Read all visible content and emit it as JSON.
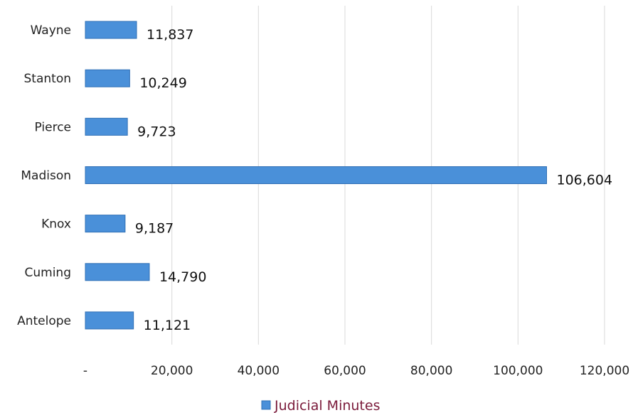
{
  "chart_data": {
    "type": "bar",
    "orientation": "horizontal",
    "categories": [
      "Wayne",
      "Stanton",
      "Pierce",
      "Madison",
      "Knox",
      "Cuming",
      "Antelope"
    ],
    "series": [
      {
        "name": "Judicial Minutes",
        "values": [
          11837,
          10249,
          9723,
          106604,
          9187,
          14790,
          11121
        ],
        "value_labels": [
          "11,837",
          "10,249",
          "9,723",
          "106,604",
          "9,187",
          "14,790",
          "11,121"
        ],
        "color": "#4a90d9"
      }
    ],
    "xlim": [
      0,
      120000
    ],
    "x_ticks": [
      0,
      20000,
      40000,
      60000,
      80000,
      100000,
      120000
    ],
    "x_tick_labels": [
      "-",
      "20,000",
      "40,000",
      "60,000",
      "80,000",
      "100,000",
      "120,000"
    ],
    "grid": "vertical",
    "legend": "bottom",
    "title": "",
    "xlabel": "",
    "ylabel": ""
  }
}
